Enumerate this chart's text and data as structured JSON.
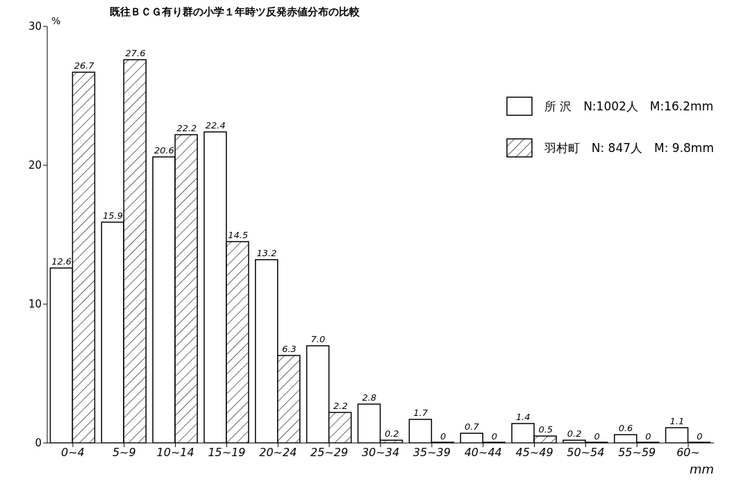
{
  "chart_data": {
    "type": "bar",
    "title": "既往ＢＣＧ有り群の小学１年時ツ反発赤値分布の比較",
    "ylabel": "%",
    "xlabel": "mm",
    "categories": [
      "0~4",
      "5~9",
      "10~14",
      "15~19",
      "20~24",
      "25~29",
      "30~34",
      "35~39",
      "40~44",
      "45~49",
      "50~54",
      "55~59",
      "60~"
    ],
    "series": [
      {
        "name": "所 沢　N:1002人　M:16.2mm",
        "color": "#ffffff",
        "values": [
          12.6,
          15.9,
          20.6,
          22.4,
          13.2,
          7.0,
          2.8,
          1.7,
          0.7,
          1.4,
          0.2,
          0.6,
          1.1
        ],
        "value_labels": [
          "12.6",
          "15.9",
          "20.6",
          "22.4",
          "13.2",
          "7.0",
          "2.8",
          "1.7",
          "0.7",
          "1.4",
          "0.2",
          "0.6",
          "1.1"
        ]
      },
      {
        "name": "羽村町　N: 847人　M: 9.8mm",
        "color": "#000000",
        "values": [
          26.7,
          27.6,
          22.2,
          14.5,
          6.3,
          2.2,
          0.2,
          0,
          0,
          0.5,
          0,
          0,
          0
        ],
        "value_labels": [
          "26.7",
          "27.6",
          "22.2",
          "14.5",
          "6.3",
          "2.2",
          "0.2",
          "0",
          "0",
          "0.5",
          "0",
          "0",
          "0"
        ]
      }
    ],
    "ylim": [
      0,
      30
    ],
    "yticks": [
      0,
      10,
      20,
      30
    ],
    "legend": "top right",
    "grid": false
  }
}
